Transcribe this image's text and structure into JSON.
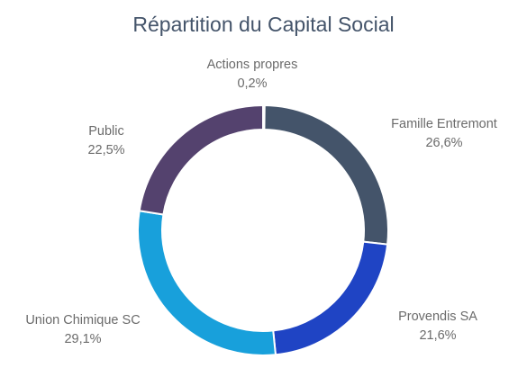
{
  "chart_data": {
    "type": "pie",
    "variant": "donut",
    "title": "Répartition du Capital Social",
    "slices": [
      {
        "label": "Actions propres",
        "value": 0.2,
        "display": "0,2%",
        "color": "#d9d9d9"
      },
      {
        "label": "Famille Entremont",
        "value": 26.6,
        "display": "26,6%",
        "color": "#44546a"
      },
      {
        "label": "Provendis SA",
        "value": 21.6,
        "display": "21,6%",
        "color": "#1f44c4"
      },
      {
        "label": "Union Chimique SC",
        "value": 29.1,
        "display": "29,1%",
        "color": "#18a0db"
      },
      {
        "label": "Public",
        "value": 22.5,
        "display": "22,5%",
        "color": "#54426e"
      }
    ],
    "legend": "none",
    "data_labels": "outside"
  }
}
